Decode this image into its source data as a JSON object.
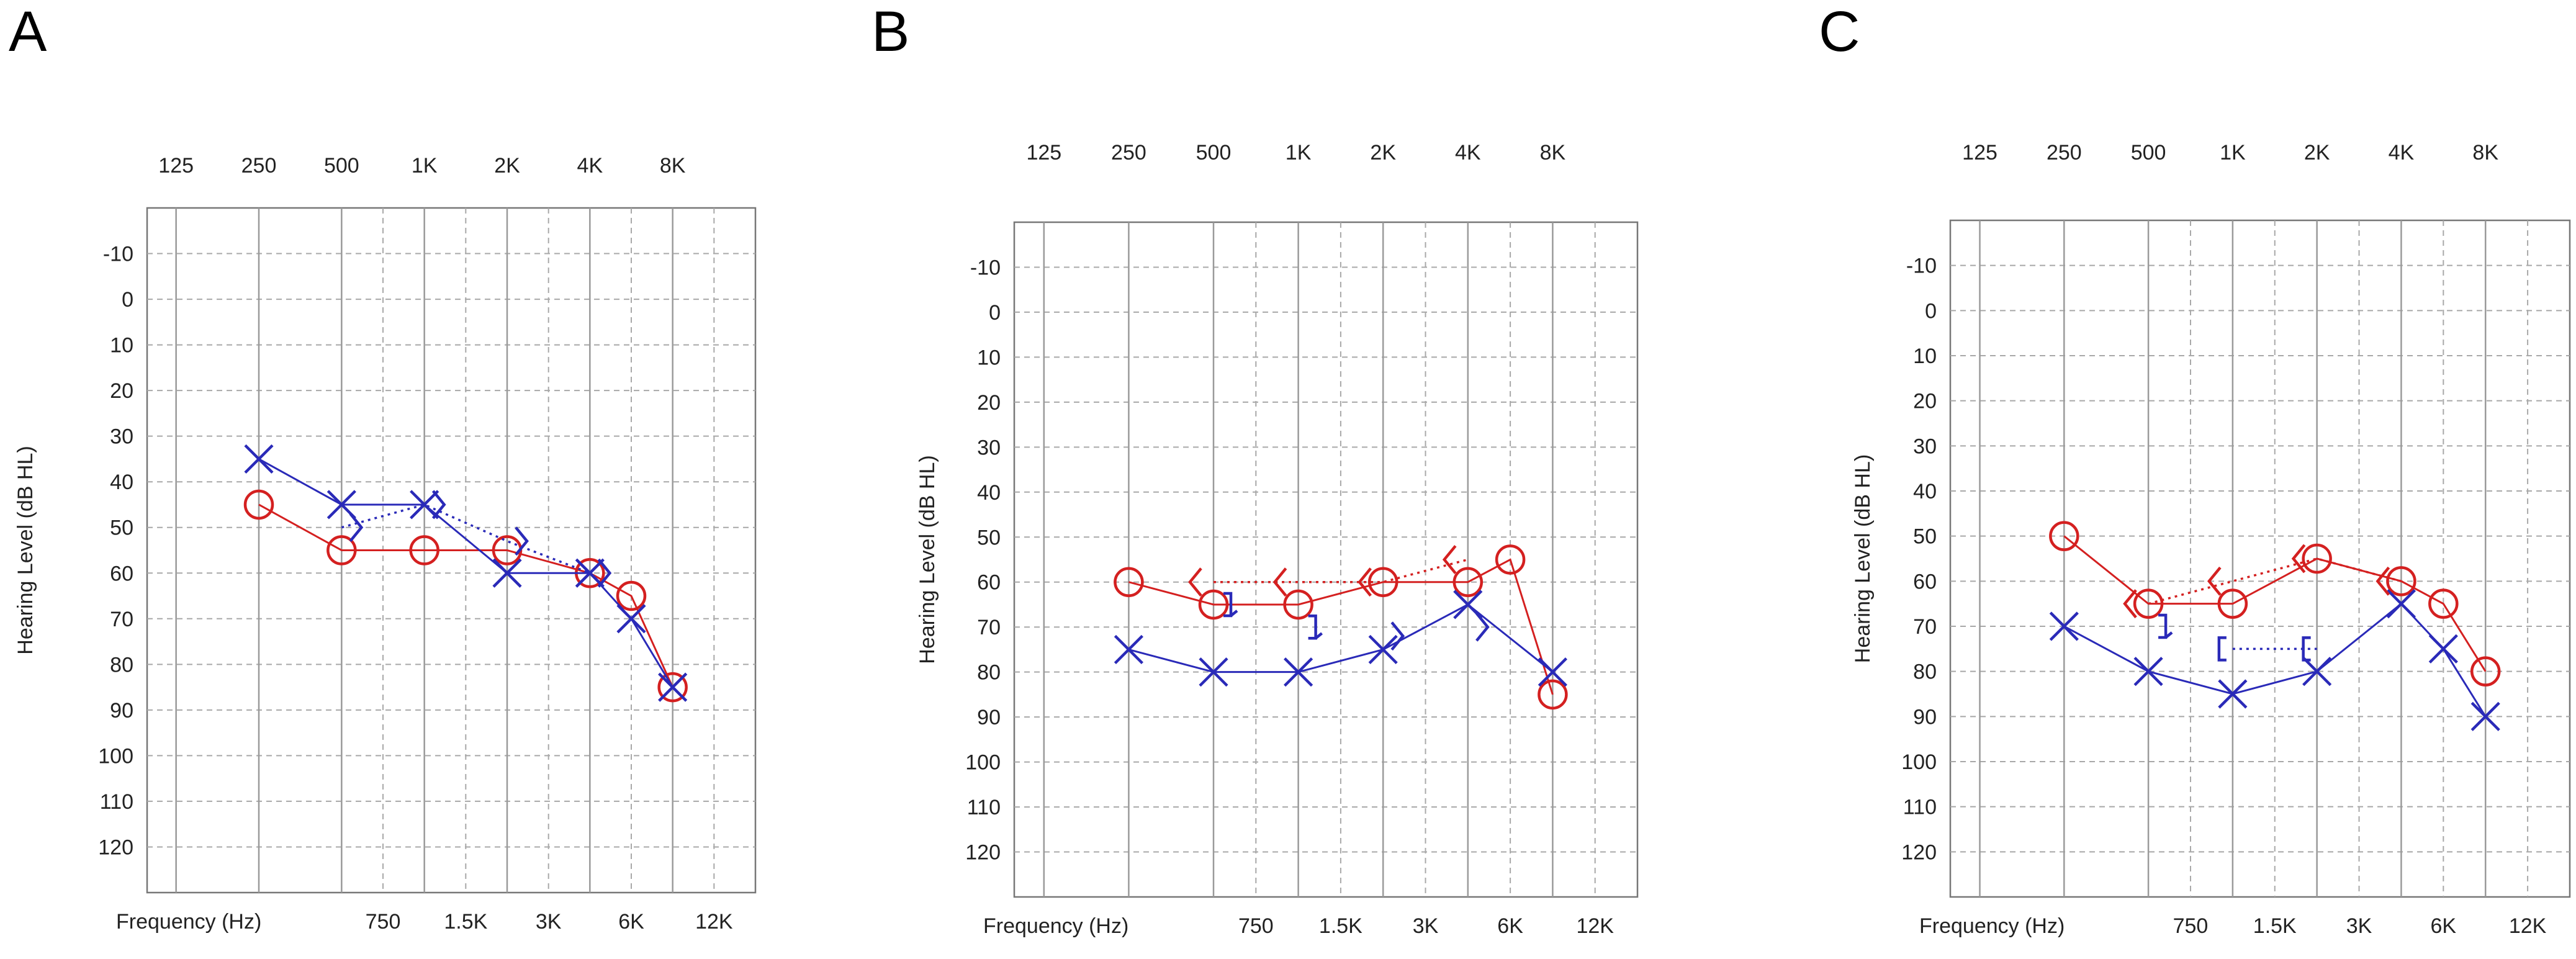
{
  "chart_data": [
    {
      "type": "line",
      "panel_label": "A",
      "ylabel": "Hearing Level (dB HL)",
      "xlabel": "Frequency (Hz)",
      "octave_ticks": [
        "125",
        "250",
        "500",
        "1K",
        "2K",
        "4K",
        "8K"
      ],
      "interoctave_ticks": [
        "750",
        "1.5K",
        "3K",
        "6K",
        "12K"
      ],
      "y_ticks": [
        "-10",
        "0",
        "10",
        "20",
        "30",
        "40",
        "50",
        "60",
        "70",
        "80",
        "90",
        "100",
        "110",
        "120"
      ],
      "ylim": [
        -20,
        130
      ],
      "y_inverted": true,
      "series": [
        {
          "symbol": "O",
          "color": "#d42020",
          "line": "solid",
          "points": [
            {
              "x": "250",
              "y": 45
            },
            {
              "x": "500",
              "y": 55
            },
            {
              "x": "1K",
              "y": 55
            },
            {
              "x": "2K",
              "y": 55
            },
            {
              "x": "4K",
              "y": 60
            },
            {
              "x": "6K",
              "y": 65
            },
            {
              "x": "8K",
              "y": 85
            }
          ]
        },
        {
          "symbol": "X",
          "color": "#2a2ab8",
          "line": "solid",
          "points": [
            {
              "x": "250",
              "y": 35
            },
            {
              "x": "500",
              "y": 45
            },
            {
              "x": "1K",
              "y": 45
            },
            {
              "x": "2K",
              "y": 60
            },
            {
              "x": "4K",
              "y": 60
            },
            {
              "x": "6K",
              "y": 70
            },
            {
              "x": "8K",
              "y": 85
            }
          ]
        },
        {
          "symbol": ">",
          "color": "#2a2ab8",
          "line": "dotted",
          "points": [
            {
              "x": "500",
              "y": 50
            },
            {
              "x": "1K",
              "y": 45
            },
            {
              "x": "2K",
              "y": 53
            },
            {
              "x": "4K",
              "y": 60
            }
          ]
        }
      ]
    },
    {
      "type": "line",
      "panel_label": "B",
      "ylabel": "Hearing Level (dB HL)",
      "xlabel": "Frequency (Hz)",
      "octave_ticks": [
        "125",
        "250",
        "500",
        "1K",
        "2K",
        "4K",
        "8K"
      ],
      "interoctave_ticks": [
        "750",
        "1.5K",
        "3K",
        "6K",
        "12K"
      ],
      "y_ticks": [
        "-10",
        "0",
        "10",
        "20",
        "30",
        "40",
        "50",
        "60",
        "70",
        "80",
        "90",
        "100",
        "110",
        "120"
      ],
      "ylim": [
        -20,
        130
      ],
      "y_inverted": true,
      "series": [
        {
          "symbol": "O",
          "color": "#d42020",
          "line": "solid",
          "points": [
            {
              "x": "250",
              "y": 60
            },
            {
              "x": "500",
              "y": 65
            },
            {
              "x": "1K",
              "y": 65
            },
            {
              "x": "2K",
              "y": 60
            },
            {
              "x": "4K",
              "y": 60
            },
            {
              "x": "6K",
              "y": 55
            },
            {
              "x": "8K",
              "y": 85
            }
          ]
        },
        {
          "symbol": "X",
          "color": "#2a2ab8",
          "line": "solid",
          "points": [
            {
              "x": "250",
              "y": 75
            },
            {
              "x": "500",
              "y": 80
            },
            {
              "x": "1K",
              "y": 80
            },
            {
              "x": "2K",
              "y": 75
            },
            {
              "x": "4K",
              "y": 65
            },
            {
              "x": "8K",
              "y": 80
            }
          ]
        },
        {
          "symbol": "<",
          "color": "#d42020",
          "line": "dotted",
          "points": [
            {
              "x": "500",
              "y": 60
            },
            {
              "x": "1K",
              "y": 60
            },
            {
              "x": "2K",
              "y": 60
            },
            {
              "x": "4K",
              "y": 55
            }
          ]
        },
        {
          "symbol": "]",
          "color": "#2a2ab8",
          "line": "none",
          "points": [
            {
              "x": "500",
              "y": 65
            },
            {
              "x": "1K",
              "y": 70
            }
          ]
        },
        {
          "symbol": ">",
          "color": "#2a2ab8",
          "line": "none",
          "points": [
            {
              "x": "2K",
              "y": 72
            },
            {
              "x": "4K",
              "y": 70
            }
          ]
        }
      ]
    },
    {
      "type": "line",
      "panel_label": "C",
      "ylabel": "Hearing Level (dB HL)",
      "xlabel": "Frequency (Hz)",
      "octave_ticks": [
        "125",
        "250",
        "500",
        "1K",
        "2K",
        "4K",
        "8K"
      ],
      "interoctave_ticks": [
        "750",
        "1.5K",
        "3K",
        "6K",
        "12K"
      ],
      "y_ticks": [
        "-10",
        "0",
        "10",
        "20",
        "30",
        "40",
        "50",
        "60",
        "70",
        "80",
        "90",
        "100",
        "110",
        "120"
      ],
      "ylim": [
        -20,
        130
      ],
      "y_inverted": true,
      "series": [
        {
          "symbol": "O",
          "color": "#d42020",
          "line": "solid",
          "points": [
            {
              "x": "250",
              "y": 50
            },
            {
              "x": "500",
              "y": 65
            },
            {
              "x": "1K",
              "y": 65
            },
            {
              "x": "2K",
              "y": 55
            },
            {
              "x": "4K",
              "y": 60
            },
            {
              "x": "6K",
              "y": 65
            },
            {
              "x": "8K",
              "y": 80
            }
          ]
        },
        {
          "symbol": "X",
          "color": "#2a2ab8",
          "line": "solid",
          "points": [
            {
              "x": "250",
              "y": 70
            },
            {
              "x": "500",
              "y": 80
            },
            {
              "x": "1K",
              "y": 85
            },
            {
              "x": "2K",
              "y": 80
            },
            {
              "x": "4K",
              "y": 65
            },
            {
              "x": "6K",
              "y": 75
            },
            {
              "x": "8K",
              "y": 90
            }
          ]
        },
        {
          "symbol": "<",
          "color": "#d42020",
          "line": "dotted",
          "points": [
            {
              "x": "500",
              "y": 65
            },
            {
              "x": "1K",
              "y": 60
            },
            {
              "x": "2K",
              "y": 55
            },
            {
              "x": "4K",
              "y": 60
            }
          ]
        },
        {
          "symbol": "]",
          "color": "#2a2ab8",
          "line": "none",
          "points": [
            {
              "x": "500",
              "y": 70
            }
          ]
        },
        {
          "symbol": "[",
          "color": "#2a2ab8",
          "line": "dotted",
          "points": [
            {
              "x": "1K",
              "y": 75
            },
            {
              "x": "2K",
              "y": 75
            }
          ]
        }
      ]
    }
  ]
}
